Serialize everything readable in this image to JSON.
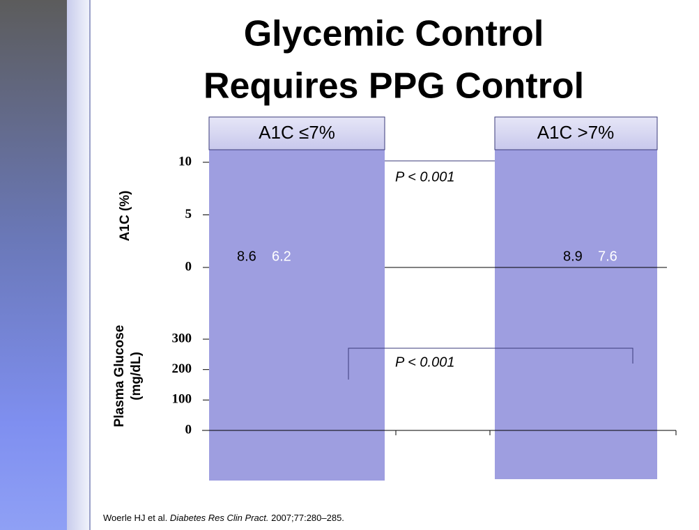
{
  "title": [
    "Glycemic Control",
    "Requires PPG Control"
  ],
  "chart_data": [
    {
      "type": "bar",
      "y_label": "A1C (%)",
      "categories": [
        "A1C ≤7%",
        "A1C >7%"
      ],
      "series": [
        {
          "color": "#000000",
          "values": [
            8.6,
            8.9
          ]
        },
        {
          "color": "#ffffff",
          "values": [
            6.2,
            7.6
          ]
        }
      ],
      "ylim": [
        0,
        10
      ],
      "yticks": [
        0,
        5,
        10
      ],
      "annotation": "P < 0.001"
    },
    {
      "type": "bar",
      "y_label": [
        "Plasma Glucose",
        "(mg/dL)"
      ],
      "ylim": [
        0,
        300
      ],
      "yticks": [
        0,
        100,
        200,
        300
      ],
      "annotation": "P < 0.001"
    }
  ],
  "footer": [
    "Woerle HJ et al. ",
    "Diabetes Res Clin Pract.",
    " 2007;77:280–285."
  ]
}
